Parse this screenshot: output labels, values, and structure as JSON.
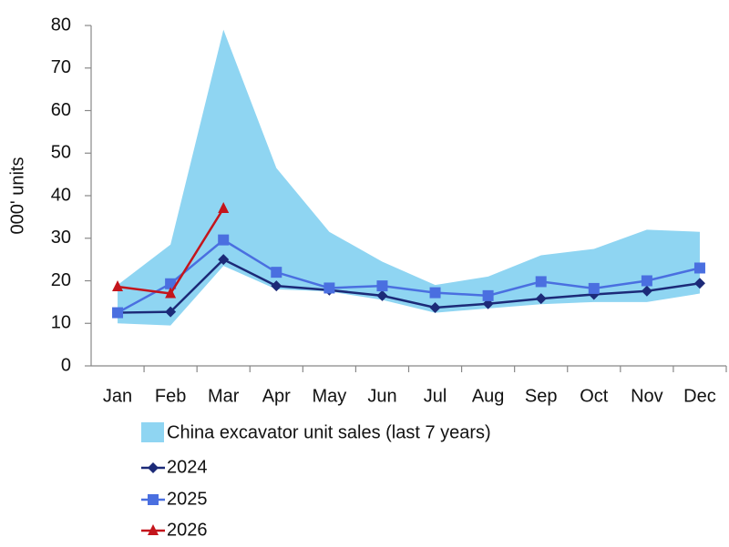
{
  "chart_data": {
    "type": "line",
    "ylabel": "000' units",
    "categories": [
      "Jan",
      "Feb",
      "Mar",
      "Apr",
      "May",
      "Jun",
      "Jul",
      "Aug",
      "Sep",
      "Oct",
      "Nov",
      "Dec"
    ],
    "band": {
      "name": "China excavator unit sales (last 7 years)",
      "color": "#8fd5f2",
      "upper": [
        19,
        28.5,
        79,
        46.5,
        31.5,
        24.5,
        19,
        21,
        26,
        27.5,
        32,
        31.5
      ],
      "lower": [
        10,
        9.5,
        23.5,
        18,
        17.5,
        15.5,
        12.5,
        13.5,
        14.5,
        15,
        15,
        17
      ]
    },
    "series": [
      {
        "name": "2024",
        "color": "#1c2a78",
        "marker": "diamond",
        "values": [
          12.5,
          12.7,
          25,
          18.8,
          17.8,
          16.5,
          13.7,
          14.6,
          15.8,
          16.8,
          17.6,
          19.4
        ]
      },
      {
        "name": "2025",
        "color": "#4a6fe0",
        "marker": "square",
        "values": [
          12.5,
          19.3,
          29.6,
          22,
          18.3,
          18.8,
          17.2,
          16.5,
          19.8,
          18.2,
          20,
          23
        ]
      },
      {
        "name": "2026",
        "color": "#c4151c",
        "marker": "triangle",
        "values": [
          18.6,
          17,
          37,
          null,
          null,
          null,
          null,
          null,
          null,
          null,
          null,
          null
        ]
      }
    ],
    "ylim": [
      0,
      80
    ],
    "yticks": [
      0,
      10,
      20,
      30,
      40,
      50,
      60,
      70,
      80
    ],
    "grid": false
  }
}
